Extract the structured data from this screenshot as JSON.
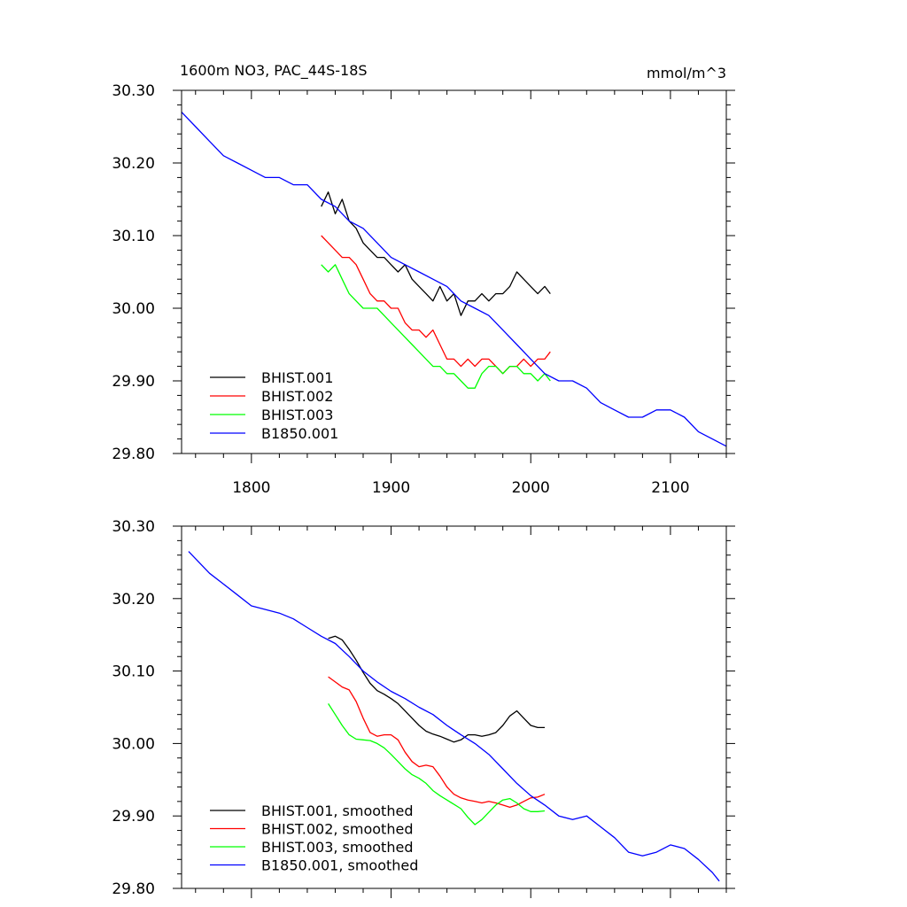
{
  "chart_data": [
    {
      "type": "line",
      "title": "1600m NO3, PAC_44S-18S",
      "units": "mmol/m^3",
      "xlim": [
        1750,
        2140
      ],
      "ylim": [
        29.8,
        30.3
      ],
      "x_ticks": [
        1800,
        1900,
        2000,
        2100
      ],
      "x_tick_labels": [
        "1800",
        "1900",
        "2000",
        "2100"
      ],
      "y_ticks": [
        29.8,
        29.9,
        30.0,
        30.1,
        30.2,
        30.3
      ],
      "y_tick_labels": [
        "29.80",
        "29.90",
        "30.00",
        "30.10",
        "30.20",
        "30.30"
      ],
      "legend_position": "bottom-left",
      "grid": false,
      "series": [
        {
          "name": "BHIST.001",
          "color": "#000000",
          "x": [
            1850,
            1855,
            1860,
            1865,
            1870,
            1875,
            1880,
            1885,
            1890,
            1895,
            1900,
            1905,
            1910,
            1915,
            1920,
            1925,
            1930,
            1935,
            1940,
            1945,
            1950,
            1955,
            1960,
            1965,
            1970,
            1975,
            1980,
            1985,
            1990,
            1995,
            2000,
            2005,
            2010,
            2014
          ],
          "y": [
            30.14,
            30.16,
            30.13,
            30.15,
            30.12,
            30.11,
            30.09,
            30.08,
            30.07,
            30.07,
            30.06,
            30.05,
            30.06,
            30.04,
            30.03,
            30.02,
            30.01,
            30.03,
            30.01,
            30.02,
            29.99,
            30.01,
            30.01,
            30.02,
            30.01,
            30.02,
            30.02,
            30.03,
            30.05,
            30.04,
            30.03,
            30.02,
            30.03,
            30.02
          ]
        },
        {
          "name": "BHIST.002",
          "color": "#ff0000",
          "x": [
            1850,
            1855,
            1860,
            1865,
            1870,
            1875,
            1880,
            1885,
            1890,
            1895,
            1900,
            1905,
            1910,
            1915,
            1920,
            1925,
            1930,
            1935,
            1940,
            1945,
            1950,
            1955,
            1960,
            1965,
            1970,
            1975,
            1980,
            1985,
            1990,
            1995,
            2000,
            2005,
            2010,
            2014
          ],
          "y": [
            30.1,
            30.09,
            30.08,
            30.07,
            30.07,
            30.06,
            30.04,
            30.02,
            30.01,
            30.01,
            30.0,
            30.0,
            29.98,
            29.97,
            29.97,
            29.96,
            29.97,
            29.95,
            29.93,
            29.93,
            29.92,
            29.93,
            29.92,
            29.93,
            29.93,
            29.92,
            29.91,
            29.92,
            29.92,
            29.93,
            29.92,
            29.93,
            29.93,
            29.94
          ]
        },
        {
          "name": "BHIST.003",
          "color": "#00ff00",
          "x": [
            1850,
            1855,
            1860,
            1865,
            1870,
            1875,
            1880,
            1885,
            1890,
            1895,
            1900,
            1905,
            1910,
            1915,
            1920,
            1925,
            1930,
            1935,
            1940,
            1945,
            1950,
            1955,
            1960,
            1965,
            1970,
            1975,
            1980,
            1985,
            1990,
            1995,
            2000,
            2005,
            2010,
            2014
          ],
          "y": [
            30.06,
            30.05,
            30.06,
            30.04,
            30.02,
            30.01,
            30.0,
            30.0,
            30.0,
            29.99,
            29.98,
            29.97,
            29.96,
            29.95,
            29.94,
            29.93,
            29.92,
            29.92,
            29.91,
            29.91,
            29.9,
            29.89,
            29.89,
            29.91,
            29.92,
            29.92,
            29.91,
            29.92,
            29.92,
            29.91,
            29.91,
            29.9,
            29.91,
            29.9
          ]
        },
        {
          "name": "B1850.001",
          "color": "#0000ff",
          "x": [
            1750,
            1760,
            1770,
            1780,
            1790,
            1800,
            1810,
            1820,
            1830,
            1840,
            1850,
            1860,
            1870,
            1880,
            1890,
            1900,
            1910,
            1920,
            1930,
            1940,
            1950,
            1960,
            1970,
            1980,
            1990,
            2000,
            2010,
            2020,
            2030,
            2040,
            2050,
            2060,
            2070,
            2080,
            2090,
            2100,
            2110,
            2120,
            2130,
            2140
          ],
          "y": [
            30.27,
            30.25,
            30.23,
            30.21,
            30.2,
            30.19,
            30.18,
            30.18,
            30.17,
            30.17,
            30.15,
            30.14,
            30.12,
            30.11,
            30.09,
            30.07,
            30.06,
            30.05,
            30.04,
            30.03,
            30.01,
            30.0,
            29.99,
            29.97,
            29.95,
            29.93,
            29.91,
            29.9,
            29.9,
            29.89,
            29.87,
            29.86,
            29.85,
            29.85,
            29.86,
            29.86,
            29.85,
            29.83,
            29.82,
            29.81
          ]
        }
      ]
    },
    {
      "type": "line",
      "title": "",
      "xlim": [
        1750,
        2140
      ],
      "ylim": [
        29.8,
        30.3
      ],
      "x_ticks": [
        1800,
        1900,
        2000,
        2100
      ],
      "x_tick_labels": [
        "",
        "",
        "",
        ""
      ],
      "y_ticks": [
        29.8,
        29.9,
        30.0,
        30.1,
        30.2,
        30.3
      ],
      "y_tick_labels": [
        "29.80",
        "29.90",
        "30.00",
        "30.10",
        "30.20",
        "30.30"
      ],
      "legend_position": "bottom-left",
      "grid": false,
      "series": [
        {
          "name": "BHIST.001, smoothed",
          "color": "#000000",
          "x": [
            1855,
            1860,
            1865,
            1870,
            1875,
            1880,
            1885,
            1890,
            1895,
            1900,
            1905,
            1910,
            1915,
            1920,
            1925,
            1930,
            1935,
            1940,
            1945,
            1950,
            1955,
            1960,
            1965,
            1970,
            1975,
            1980,
            1985,
            1990,
            1995,
            2000,
            2005,
            2010
          ],
          "y": [
            30.145,
            30.148,
            30.143,
            30.13,
            30.115,
            30.098,
            30.083,
            30.073,
            30.068,
            30.062,
            30.055,
            30.045,
            30.035,
            30.025,
            30.017,
            30.013,
            30.01,
            30.006,
            30.002,
            30.005,
            30.012,
            30.012,
            30.01,
            30.012,
            30.015,
            30.025,
            30.038,
            30.045,
            30.035,
            30.025,
            30.022,
            30.022
          ]
        },
        {
          "name": "BHIST.002, smoothed",
          "color": "#ff0000",
          "x": [
            1855,
            1860,
            1865,
            1870,
            1875,
            1880,
            1885,
            1890,
            1895,
            1900,
            1905,
            1910,
            1915,
            1920,
            1925,
            1930,
            1935,
            1940,
            1945,
            1950,
            1955,
            1960,
            1965,
            1970,
            1975,
            1980,
            1985,
            1990,
            1995,
            2000,
            2005,
            2010
          ],
          "y": [
            30.092,
            30.085,
            30.078,
            30.074,
            30.058,
            30.035,
            30.015,
            30.01,
            30.012,
            30.012,
            30.005,
            29.988,
            29.975,
            29.968,
            29.97,
            29.968,
            29.955,
            29.94,
            29.93,
            29.925,
            29.922,
            29.92,
            29.918,
            29.92,
            29.918,
            29.915,
            29.912,
            29.915,
            29.92,
            29.925,
            29.926,
            29.93
          ]
        },
        {
          "name": "BHIST.003, smoothed",
          "color": "#00ff00",
          "x": [
            1855,
            1860,
            1865,
            1870,
            1875,
            1880,
            1885,
            1890,
            1895,
            1900,
            1905,
            1910,
            1915,
            1920,
            1925,
            1930,
            1935,
            1940,
            1945,
            1950,
            1955,
            1960,
            1965,
            1970,
            1975,
            1980,
            1985,
            1990,
            1995,
            2000,
            2005,
            2010
          ],
          "y": [
            30.055,
            30.04,
            30.025,
            30.012,
            30.006,
            30.005,
            30.004,
            30.0,
            29.994,
            29.985,
            29.975,
            29.965,
            29.957,
            29.952,
            29.945,
            29.935,
            29.928,
            29.922,
            29.916,
            29.91,
            29.898,
            29.888,
            29.895,
            29.905,
            29.915,
            29.922,
            29.924,
            29.918,
            29.91,
            29.906,
            29.906,
            29.907
          ]
        },
        {
          "name": "B1850.001, smoothed",
          "color": "#0000ff",
          "x": [
            1755,
            1760,
            1770,
            1780,
            1790,
            1800,
            1810,
            1820,
            1830,
            1840,
            1850,
            1860,
            1870,
            1880,
            1890,
            1900,
            1910,
            1920,
            1930,
            1940,
            1950,
            1960,
            1970,
            1980,
            1990,
            2000,
            2010,
            2020,
            2030,
            2040,
            2050,
            2060,
            2070,
            2080,
            2090,
            2100,
            2110,
            2120,
            2130,
            2135
          ],
          "y": [
            30.265,
            30.255,
            30.235,
            30.22,
            30.205,
            30.19,
            30.185,
            30.18,
            30.172,
            30.16,
            30.148,
            30.138,
            30.12,
            30.1,
            30.085,
            30.072,
            30.062,
            30.05,
            30.04,
            30.025,
            30.012,
            30.0,
            29.985,
            29.965,
            29.945,
            29.928,
            29.915,
            29.9,
            29.895,
            29.9,
            29.885,
            29.87,
            29.85,
            29.845,
            29.85,
            29.86,
            29.855,
            29.84,
            29.822,
            29.81
          ]
        }
      ]
    }
  ]
}
